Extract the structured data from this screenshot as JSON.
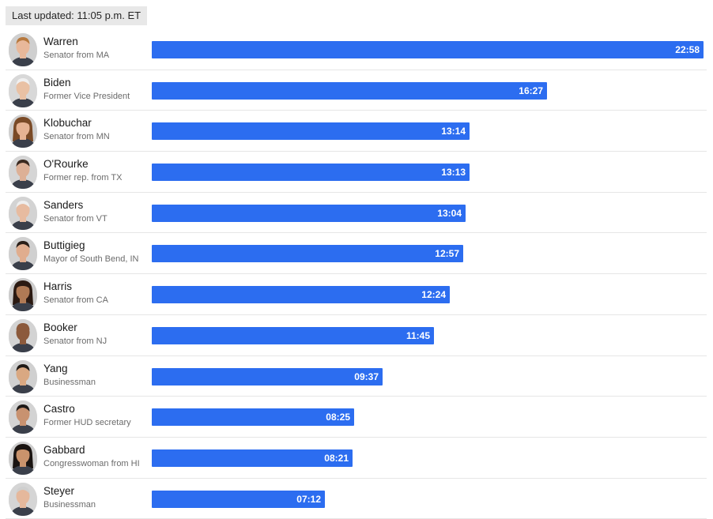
{
  "header": {
    "last_updated": "Last updated: 11:05 p.m. ET"
  },
  "colors": {
    "bar": "#2c6df0",
    "bar_label": "#ffffff"
  },
  "chart_data": {
    "type": "bar",
    "orientation": "horizontal",
    "value_format": "mm:ss",
    "xlim_seconds": [
      0,
      1378
    ],
    "categories": [
      "Warren",
      "Biden",
      "Klobuchar",
      "O'Rourke",
      "Sanders",
      "Buttigieg",
      "Harris",
      "Booker",
      "Yang",
      "Castro",
      "Gabbard",
      "Steyer"
    ],
    "values_seconds": [
      1378,
      987,
      794,
      793,
      784,
      777,
      744,
      705,
      577,
      505,
      501,
      432
    ],
    "value_labels": [
      "22:58",
      "16:27",
      "13:14",
      "13:13",
      "13:04",
      "12:57",
      "12:24",
      "11:45",
      "09:37",
      "08:25",
      "08:21",
      "07:12"
    ]
  },
  "candidates": [
    {
      "name": "Warren",
      "title": "Senator from MA",
      "time": "22:58",
      "seconds": 1378,
      "icon": "candidate-photo"
    },
    {
      "name": "Biden",
      "title": "Former Vice President",
      "time": "16:27",
      "seconds": 987,
      "icon": "candidate-photo"
    },
    {
      "name": "Klobuchar",
      "title": "Senator from MN",
      "time": "13:14",
      "seconds": 794,
      "icon": "candidate-photo"
    },
    {
      "name": "O'Rourke",
      "title": "Former rep. from TX",
      "time": "13:13",
      "seconds": 793,
      "icon": "candidate-photo"
    },
    {
      "name": "Sanders",
      "title": "Senator from VT",
      "time": "13:04",
      "seconds": 784,
      "icon": "candidate-photo"
    },
    {
      "name": "Buttigieg",
      "title": "Mayor of South Bend, IN",
      "time": "12:57",
      "seconds": 777,
      "icon": "candidate-photo"
    },
    {
      "name": "Harris",
      "title": "Senator from CA",
      "time": "12:24",
      "seconds": 744,
      "icon": "candidate-photo"
    },
    {
      "name": "Booker",
      "title": "Senator from NJ",
      "time": "11:45",
      "seconds": 705,
      "icon": "candidate-photo"
    },
    {
      "name": "Yang",
      "title": "Businessman",
      "time": "09:37",
      "seconds": 577,
      "icon": "candidate-photo"
    },
    {
      "name": "Castro",
      "title": "Former HUD secretary",
      "time": "08:25",
      "seconds": 505,
      "icon": "candidate-photo"
    },
    {
      "name": "Gabbard",
      "title": "Congresswoman from HI",
      "time": "08:21",
      "seconds": 501,
      "icon": "candidate-photo"
    },
    {
      "name": "Steyer",
      "title": "Businessman",
      "time": "07:12",
      "seconds": 432,
      "icon": "candidate-photo"
    }
  ]
}
